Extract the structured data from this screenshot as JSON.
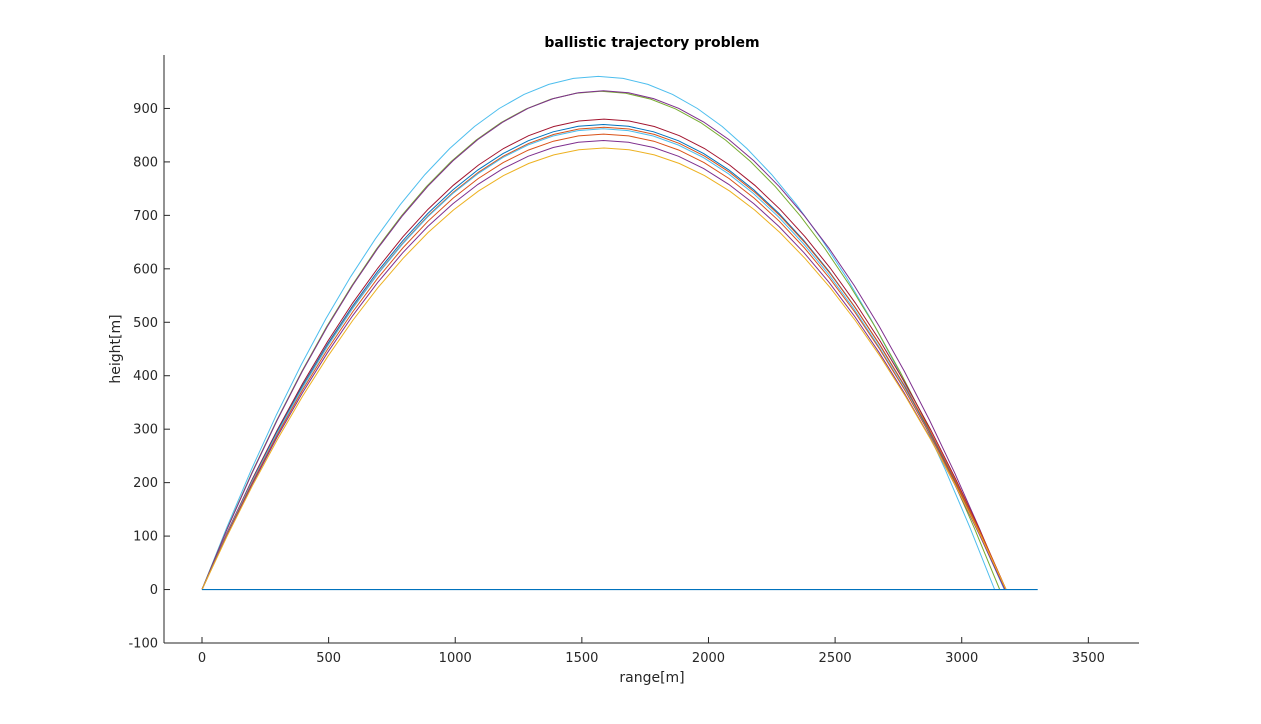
{
  "chart_data": {
    "type": "line",
    "title": "ballistic trajectory problem",
    "xlabel": "range[m]",
    "ylabel": "height[m]",
    "xlim": [
      -150,
      3700
    ],
    "ylim": [
      -100,
      1000
    ],
    "xticks": [
      0,
      500,
      1000,
      1500,
      2000,
      2500,
      3000,
      3500
    ],
    "yticks": [
      -100,
      0,
      100,
      200,
      300,
      400,
      500,
      600,
      700,
      800,
      900
    ],
    "grid": false,
    "legend": "none",
    "series": [
      {
        "color": "#4DBEEE",
        "range_end": 3130,
        "apex": 960
      },
      {
        "color": "#77AC30",
        "range_end": 3150,
        "apex": 932
      },
      {
        "color": "#7E2F8E",
        "range_end": 3170,
        "apex": 933
      },
      {
        "color": "#A2142F",
        "range_end": 3175,
        "apex": 880
      },
      {
        "color": "#0072BD",
        "range_end": 3170,
        "apex": 870
      },
      {
        "color": "#D95319",
        "range_end": 3175,
        "apex": 865
      },
      {
        "color": "#4DBEEE",
        "range_end": 3168,
        "apex": 862
      },
      {
        "color": "#D95319",
        "range_end": 3172,
        "apex": 852
      },
      {
        "color": "#7E2F8E",
        "range_end": 3170,
        "apex": 840
      },
      {
        "color": "#EDB120",
        "range_end": 3175,
        "apex": 826
      }
    ],
    "baseline": {
      "color": "#0072BD",
      "x": [
        0,
        3300
      ],
      "y": [
        0,
        0
      ]
    }
  }
}
